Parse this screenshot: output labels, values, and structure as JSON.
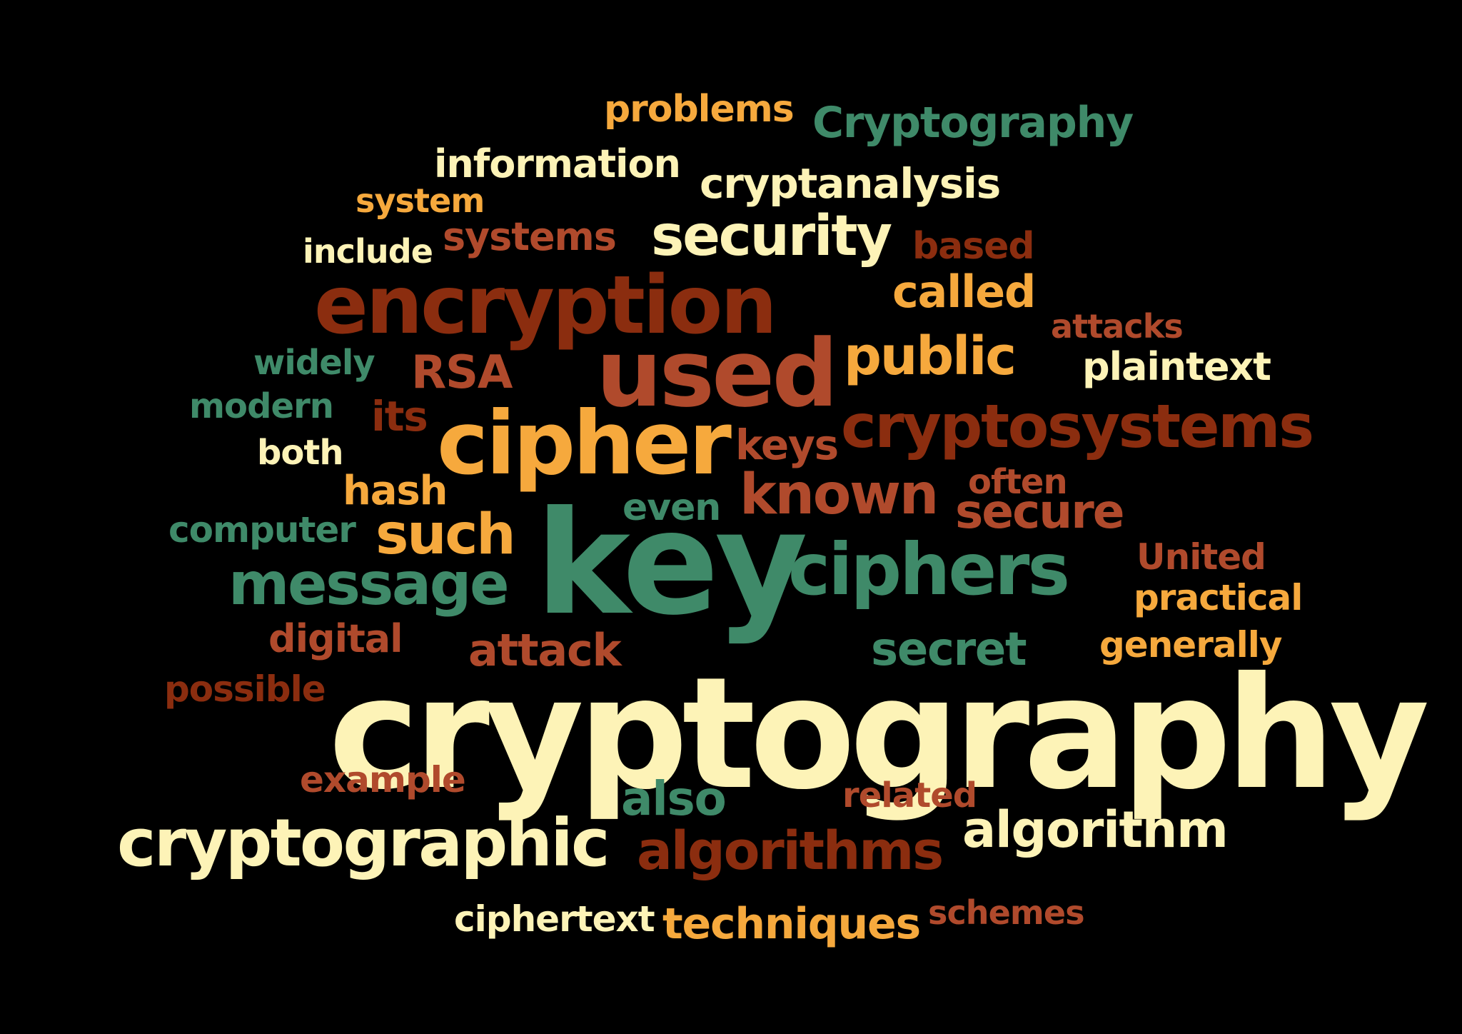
{
  "background_color": "#000000",
  "palette": {
    "cream": "#fdf3b7",
    "gold": "#f6a93d",
    "teal": "#3f8a69",
    "brick": "#b04a2c",
    "maroon": "#8b2d0f"
  },
  "words": {
    "cryptography_big": "cryptography",
    "key": "key",
    "encryption": "encryption",
    "used": "used",
    "cipher": "cipher",
    "cryptographic": "cryptographic",
    "ciphers": "ciphers",
    "cryptosystems": "cryptosystems",
    "message": "message",
    "algorithms": "algorithms",
    "algorithm": "algorithm",
    "known": "known",
    "such": "such",
    "security": "security",
    "public": "public",
    "secure": "secure",
    "cryptanalysis": "cryptanalysis",
    "Cryptography": "Cryptography",
    "secret": "secret",
    "also": "also",
    "techniques": "techniques",
    "attack": "attack",
    "called": "called",
    "plaintext": "plaintext",
    "information": "information",
    "systems": "systems",
    "RSA": "RSA",
    "hash": "hash",
    "computer": "computer",
    "its": "its",
    "keys": "keys",
    "problems": "problems",
    "system": "system",
    "include": "include",
    "based": "based",
    "attacks": "attacks",
    "widely": "widely",
    "modern": "modern",
    "both": "both",
    "even": "even",
    "often": "often",
    "United": "United",
    "practical": "practical",
    "generally": "generally",
    "digital": "digital",
    "possible": "possible",
    "example": "example",
    "related": "related",
    "ciphertext": "ciphertext",
    "schemes": "schemes"
  }
}
